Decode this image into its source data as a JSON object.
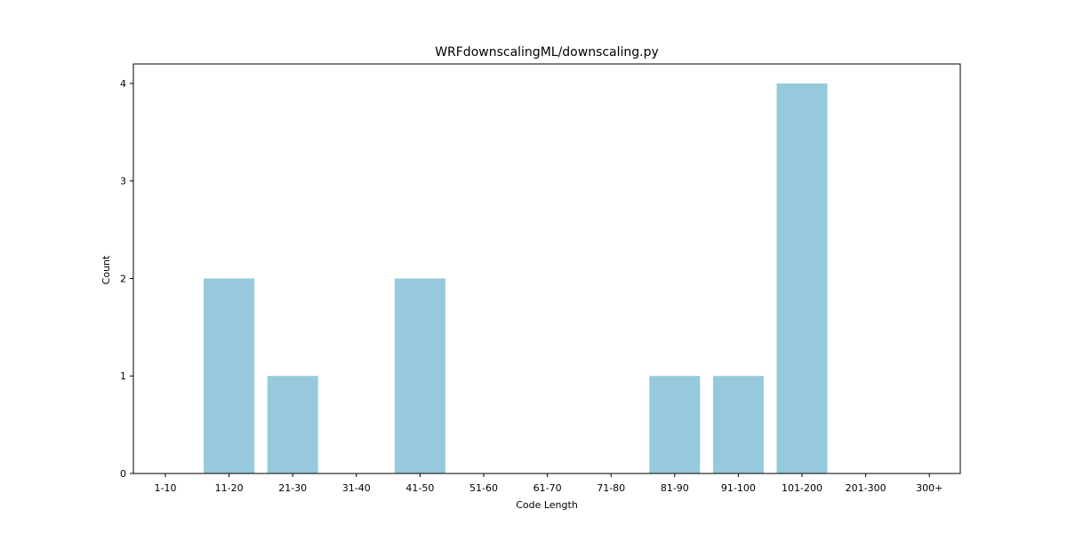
{
  "chart_data": {
    "type": "bar",
    "title": "WRFdownscalingML/downscaling.py",
    "xlabel": "Code Length",
    "ylabel": "Count",
    "categories": [
      "1-10",
      "11-20",
      "21-30",
      "31-40",
      "41-50",
      "51-60",
      "61-70",
      "71-80",
      "81-90",
      "91-100",
      "101-200",
      "201-300",
      "300+"
    ],
    "values": [
      0,
      2,
      1,
      0,
      2,
      0,
      0,
      0,
      1,
      1,
      4,
      0,
      0
    ],
    "yticks": [
      0,
      1,
      2,
      3,
      4
    ],
    "ylim": [
      0,
      4.2
    ],
    "bar_color": "#96c9dc",
    "grid": false,
    "legend": "none"
  }
}
